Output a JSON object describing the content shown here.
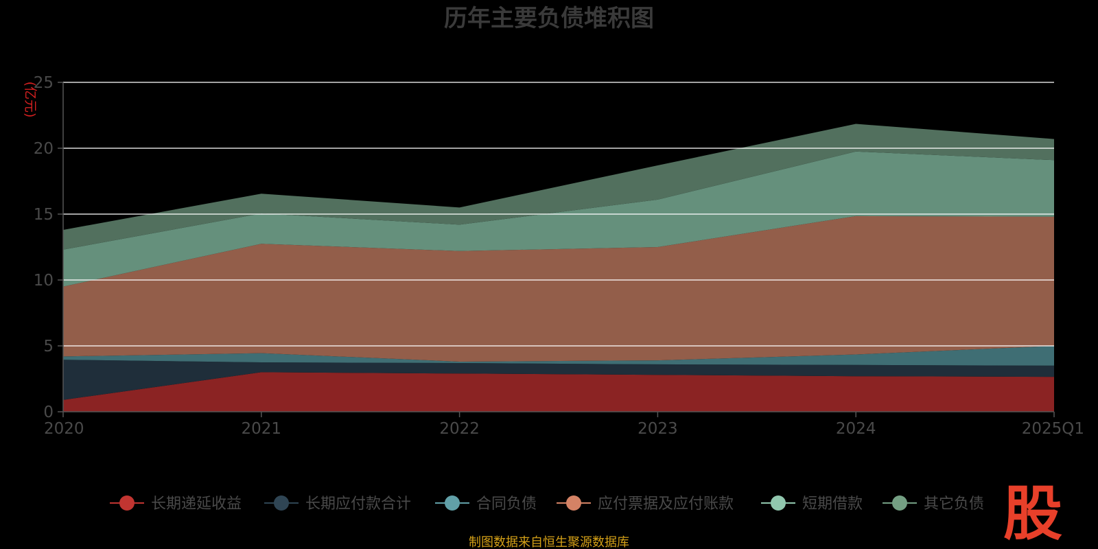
{
  "chart_data": {
    "type": "area",
    "stacked": true,
    "title": "历年主要负债堆积图",
    "unit_label": "(亿元)",
    "categories": [
      "2020",
      "2021",
      "2022",
      "2023",
      "2024",
      "2025Q1"
    ],
    "ylim": [
      0,
      25
    ],
    "yticks": [
      "0",
      "5",
      "10",
      "15",
      "20",
      "25"
    ],
    "grid": true,
    "legend_position": "bottom",
    "series": [
      {
        "name": "长期递延收益",
        "color": "#8b2323",
        "legend_color": "#c23531",
        "values": [
          0.9,
          3.0,
          2.9,
          2.8,
          2.7,
          2.65
        ]
      },
      {
        "name": "长期应付款合计",
        "color": "#1f2e3a",
        "legend_color": "#2f4554",
        "values": [
          3.05,
          0.75,
          0.8,
          0.8,
          0.85,
          0.85
        ]
      },
      {
        "name": "合同负债",
        "color": "#3f6e74",
        "legend_color": "#61a0a8",
        "values": [
          0.25,
          0.7,
          0.1,
          0.3,
          0.8,
          1.5
        ]
      },
      {
        "name": "应付票据及应付账款",
        "color": "#935e4a",
        "legend_color": "#d48265",
        "values": [
          5.3,
          8.3,
          8.4,
          8.6,
          10.5,
          9.8
        ]
      },
      {
        "name": "短期借款",
        "color": "#65907c",
        "legend_color": "#91c7ae",
        "values": [
          2.8,
          2.3,
          2.0,
          3.6,
          4.9,
          4.3
        ]
      },
      {
        "name": "其它负债",
        "color": "#52705e",
        "legend_color": "#749f83",
        "values": [
          1.5,
          1.5,
          1.3,
          2.6,
          2.1,
          1.6
        ]
      }
    ]
  },
  "footer": {
    "source": "制图数据来自恒生聚源数据库",
    "logo_text": "股"
  }
}
